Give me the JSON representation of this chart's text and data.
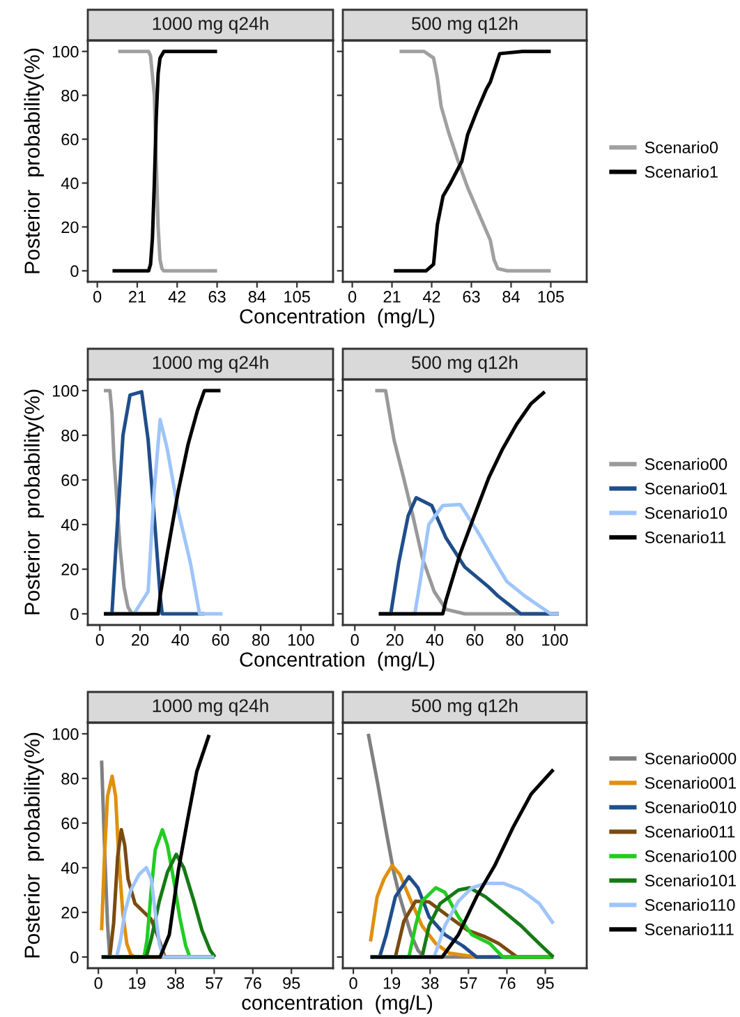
{
  "chart_data": [
    {
      "type": "line",
      "title": "1000 mg q24h",
      "xlabel": "Concentration  (mg/L)",
      "ylabel": "Posterior  probability(%)",
      "xlim": [
        -5,
        124
      ],
      "xticks": [
        0,
        21,
        42,
        63,
        84,
        105
      ],
      "ylim": [
        -5,
        105
      ],
      "yticks": [
        0,
        20,
        40,
        60,
        80,
        100
      ],
      "grid": false,
      "legend": "right",
      "line_style": "solid",
      "series": [
        {
          "name": "Scenario0",
          "color": "#a0a0a0",
          "x": [
            11,
            27,
            28,
            30,
            31,
            32,
            33,
            34,
            35,
            63
          ],
          "values": [
            100,
            100,
            98,
            80,
            50,
            20,
            5,
            1,
            0,
            0
          ]
        },
        {
          "name": "Scenario1",
          "color": "#000000",
          "x": [
            8,
            27,
            28,
            29,
            30,
            31,
            32,
            33,
            35,
            63
          ],
          "values": [
            0,
            0,
            3,
            15,
            40,
            70,
            90,
            97,
            100,
            100
          ]
        }
      ]
    },
    {
      "type": "line",
      "title": "500 mg q12h",
      "xlim": [
        -5,
        124
      ],
      "xticks": [
        0,
        21,
        42,
        63,
        84,
        105
      ],
      "ylim": [
        -5,
        105
      ],
      "yticks": [
        0,
        20,
        40,
        60,
        80,
        100
      ],
      "tick_labels": "x",
      "grid": false,
      "line_style": "solid",
      "series": [
        {
          "color": "#a0a0a0",
          "x": [
            25,
            38,
            43,
            45,
            47,
            51,
            56,
            61,
            66,
            71,
            73,
            75,
            77,
            82,
            105
          ],
          "values": [
            100,
            100,
            97,
            88,
            75,
            63,
            50,
            38,
            28,
            18,
            14,
            5,
            1,
            0,
            0
          ]
        },
        {
          "color": "#000000",
          "x": [
            22,
            39,
            43,
            45,
            48,
            52,
            58,
            61,
            66,
            71,
            73,
            78,
            90,
            105
          ],
          "values": [
            0,
            0,
            3,
            21,
            34,
            40,
            50,
            62,
            73,
            83,
            86,
            99,
            100,
            100
          ]
        }
      ]
    },
    {
      "type": "line",
      "title": "1000 mg q24h",
      "xlabel": "Concentration  (mg/L)",
      "ylabel": "Posterior  probability(%)",
      "xlim": [
        -6,
        116
      ],
      "xticks": [
        0,
        20,
        40,
        60,
        80,
        100
      ],
      "ylim": [
        -5,
        105
      ],
      "yticks": [
        0,
        20,
        40,
        60,
        80,
        100
      ],
      "grid": false,
      "legend": "right",
      "line_style": "solid",
      "series": [
        {
          "name": "Scenario00",
          "color": "#999999",
          "x": [
            2,
            5,
            6,
            7,
            8,
            10,
            12,
            14,
            16,
            30
          ],
          "values": [
            100,
            100,
            90,
            70,
            57,
            30,
            12,
            3,
            0,
            0
          ]
        },
        {
          "name": "Scenario01",
          "color": "#1f4e8a",
          "x": [
            2,
            6,
            8,
            11.5,
            15,
            20.8,
            24,
            27.7,
            30,
            31,
            52
          ],
          "values": [
            0,
            0,
            30,
            80,
            98,
            99.5,
            78,
            36,
            8,
            0,
            0
          ]
        },
        {
          "name": "Scenario10",
          "color": "#9ec5fa",
          "x": [
            2,
            17,
            24,
            27,
            30,
            33.5,
            39,
            45,
            49.6,
            61
          ],
          "values": [
            0,
            0,
            10,
            55,
            87,
            74,
            46,
            23,
            0,
            0
          ]
        },
        {
          "name": "Scenario11",
          "color": "#000000",
          "x": [
            2,
            29,
            30,
            33.5,
            39,
            43.9,
            48.5,
            52,
            60
          ],
          "values": [
            0,
            0,
            8,
            27,
            55,
            76,
            91,
            100,
            100
          ]
        }
      ]
    },
    {
      "type": "line",
      "title": "500 mg q12h",
      "xlim": [
        -6,
        116
      ],
      "xticks": [
        0,
        20,
        40,
        60,
        80,
        100
      ],
      "ylim": [
        -5,
        105
      ],
      "yticks": [
        0,
        20,
        40,
        60,
        80,
        100
      ],
      "tick_labels": "x",
      "grid": false,
      "line_style": "solid",
      "series": [
        {
          "color": "#999999",
          "x": [
            10.2,
            15.4,
            19.6,
            24.4,
            29,
            33.8,
            39.7,
            45.6,
            55,
            102
          ],
          "values": [
            100,
            100,
            78,
            61,
            44,
            25,
            10,
            2,
            0,
            0
          ]
        },
        {
          "color": "#1f4e8a",
          "x": [
            12,
            18,
            22,
            26.7,
            30.7,
            38.5,
            45.6,
            55,
            67,
            71.6,
            83,
            102
          ],
          "values": [
            0,
            0,
            23,
            44,
            52,
            48.5,
            34,
            21,
            12,
            8,
            0,
            0
          ]
        },
        {
          "color": "#9ec5fa",
          "x": [
            12,
            30,
            32.6,
            37,
            44,
            52.7,
            62,
            69,
            76,
            85,
            98,
            102
          ],
          "values": [
            0,
            0,
            14,
            40,
            48.5,
            49,
            36,
            25,
            14.5,
            8,
            0,
            0
          ]
        },
        {
          "color": "#000000",
          "x": [
            12,
            44,
            45.6,
            52.7,
            59.8,
            67,
            74,
            81,
            88,
            95
          ],
          "values": [
            0,
            0,
            6,
            27,
            44,
            61,
            74,
            85,
            94,
            99.5
          ]
        }
      ]
    },
    {
      "type": "line",
      "title": "1000 mg q24h",
      "xlabel": "concentration  (mg/L)",
      "ylabel": "Posterior  probability(%)",
      "xlim": [
        -5.2,
        115.5
      ],
      "xticks": [
        0,
        19,
        38,
        57,
        76,
        95
      ],
      "ylim": [
        -5,
        105
      ],
      "yticks": [
        0,
        20,
        40,
        60,
        80,
        100
      ],
      "grid": false,
      "legend": "right",
      "line_style": "solid",
      "series": [
        {
          "name": "Scenario000",
          "color": "#808080",
          "x": [
            1.6,
            3,
            4.5,
            5.6,
            57
          ],
          "values": [
            88,
            50,
            15,
            0,
            0
          ]
        },
        {
          "name": "Scenario001",
          "color": "#e0900e",
          "x": [
            1.6,
            3,
            4.5,
            6.8,
            8.5,
            10,
            12,
            14,
            16,
            18,
            57
          ],
          "values": [
            12,
            45,
            72,
            81,
            72,
            45,
            20,
            6,
            1,
            0,
            0
          ]
        },
        {
          "name": "Scenario010",
          "color": "#1f4e8a"
        },
        {
          "name": "Scenario011",
          "color": "#7a4a10",
          "x": [
            1.6,
            5.6,
            7.5,
            9.5,
            11.3,
            13,
            14.6,
            18,
            22.5,
            25.9,
            29,
            32.7,
            57
          ],
          "values": [
            0,
            0,
            15,
            45,
            57,
            50,
            35,
            24,
            20,
            17,
            10,
            0,
            0
          ]
        },
        {
          "name": "Scenario100",
          "color": "#22cc22",
          "x": [
            1.6,
            22.5,
            24,
            26,
            28,
            31.5,
            34,
            37,
            40,
            43,
            45,
            57
          ],
          "values": [
            0,
            0,
            8,
            30,
            48,
            57,
            50,
            35,
            18,
            5,
            0,
            0
          ]
        },
        {
          "name": "Scenario101",
          "color": "#157a15",
          "x": [
            1.6,
            23.6,
            26,
            30,
            34,
            38.3,
            42,
            47,
            51,
            55,
            57.4
          ],
          "values": [
            0,
            0,
            8,
            25,
            38,
            46,
            40,
            25,
            12,
            3,
            0
          ]
        },
        {
          "name": "Scenario110",
          "color": "#9ec5fa",
          "x": [
            1.6,
            9,
            11,
            13,
            16,
            20,
            23.6,
            26,
            28,
            30,
            32,
            57
          ],
          "values": [
            0,
            0,
            8,
            20,
            30,
            37,
            40,
            35,
            20,
            6,
            0,
            0
          ]
        },
        {
          "name": "Scenario111",
          "color": "#000000",
          "x": [
            1.6,
            30.4,
            34.9,
            39.4,
            44,
            48.4,
            54.5
          ],
          "values": [
            0,
            0,
            10,
            39,
            62,
            83,
            99.5
          ]
        }
      ]
    },
    {
      "type": "line",
      "title": "500 mg q12h",
      "xlim": [
        -5.2,
        115.5
      ],
      "xticks": [
        0,
        19,
        38,
        57,
        76,
        95
      ],
      "ylim": [
        -5,
        105
      ],
      "yticks": [
        0,
        20,
        40,
        60,
        80,
        100
      ],
      "tick_labels": "x",
      "grid": false,
      "line_style": "solid",
      "series": [
        {
          "color": "#808080",
          "x": [
            7.4,
            12,
            16.3,
            20,
            23,
            28.6,
            32,
            35,
            99
          ],
          "values": [
            100,
            78,
            56,
            38,
            27,
            10,
            3,
            0,
            0
          ]
        },
        {
          "color": "#e0900e",
          "x": [
            8.5,
            11.8,
            15.2,
            19.2,
            23,
            28.6,
            34,
            40.8,
            47.5,
            61,
            99
          ],
          "values": [
            7,
            27,
            35,
            41,
            37,
            25,
            14,
            6,
            1.7,
            0,
            0
          ]
        },
        {
          "color": "#1f4e8a",
          "x": [
            8.5,
            13,
            16.3,
            20.8,
            27.5,
            32,
            37.5,
            45.3,
            54.2,
            61,
            99
          ],
          "values": [
            0,
            0,
            10,
            27,
            36,
            31,
            18,
            10,
            5,
            0,
            0
          ]
        },
        {
          "color": "#7a4a10",
          "x": [
            8.5,
            20.8,
            25,
            30.8,
            37.5,
            47.5,
            56.5,
            65.4,
            72,
            81,
            99
          ],
          "values": [
            0,
            0,
            16,
            25,
            24.7,
            18,
            12,
            9,
            6,
            0,
            0
          ]
        },
        {
          "color": "#22cc22",
          "x": [
            8.5,
            27.5,
            30.8,
            34,
            40.8,
            45.3,
            52,
            58.7,
            67.6,
            74,
            99
          ],
          "values": [
            0,
            0,
            14,
            25,
            31,
            29,
            18,
            10,
            6,
            0,
            0
          ]
        },
        {
          "color": "#157a15",
          "x": [
            8.5,
            34,
            37.5,
            43,
            52,
            57.6,
            65.4,
            74.3,
            83,
            92,
            99
          ],
          "values": [
            0,
            0,
            14,
            24,
            30,
            31,
            27,
            20.5,
            14,
            6,
            0
          ]
        },
        {
          "color": "#9ec5fa",
          "x": [
            8.5,
            40,
            45.3,
            52,
            58.7,
            65.4,
            74.3,
            83,
            92,
            99
          ],
          "values": [
            0,
            0,
            14,
            25,
            31,
            33,
            33,
            30,
            24,
            15
          ]
        },
        {
          "color": "#000000",
          "x": [
            8.5,
            44,
            52,
            61,
            70,
            79,
            88,
            99
          ],
          "values": [
            0,
            0,
            10,
            27,
            41,
            58,
            73,
            84
          ]
        }
      ]
    }
  ]
}
